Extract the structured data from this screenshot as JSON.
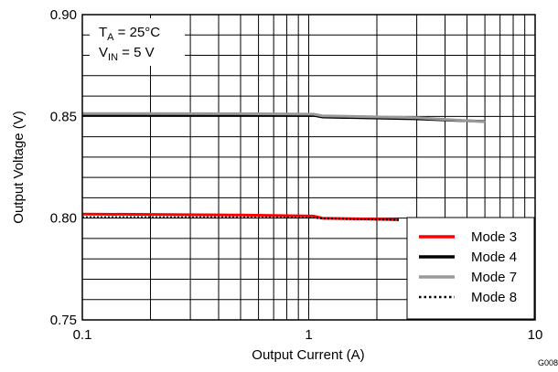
{
  "chart_data": {
    "type": "line",
    "xlabel": "Output Current (A)",
    "ylabel": "Output Voltage (V)",
    "xscale": "log",
    "xlim": [
      0.1,
      10
    ],
    "ylim": [
      0.75,
      0.9
    ],
    "x_tick_labels": [
      "0.1",
      "1",
      "10"
    ],
    "y_tick_labels": [
      "0.75",
      "0.80",
      "0.85",
      "0.90"
    ],
    "grid": true,
    "legend_position": "bottom-right",
    "conditions": {
      "temp_prefix": "T",
      "temp_sub": "A",
      "temp_value": " = 25°C",
      "vin_prefix": "V",
      "vin_sub": "IN",
      "vin_value": " = 5 V"
    },
    "figure_id": "G008",
    "series": [
      {
        "name": "Mode 3",
        "color": "#ff0000",
        "style": "solid",
        "x": [
          0.1,
          0.5,
          1.05,
          1.15,
          2.0,
          2.5
        ],
        "y": [
          0.802,
          0.8015,
          0.801,
          0.8,
          0.7995,
          0.7992
        ]
      },
      {
        "name": "Mode 4",
        "color": "#000000",
        "style": "solid",
        "x": [
          0.1,
          0.5,
          1.05,
          1.15,
          3.0,
          6.0
        ],
        "y": [
          0.8508,
          0.8507,
          0.8505,
          0.8497,
          0.8488,
          0.8475
        ]
      },
      {
        "name": "Mode 7",
        "color": "#999999",
        "style": "solid",
        "x": [
          0.1,
          0.5,
          1.05,
          1.15,
          3.0,
          6.0
        ],
        "y": [
          0.8514,
          0.8513,
          0.8511,
          0.8503,
          0.8494,
          0.8473
        ]
      },
      {
        "name": "Mode 8",
        "color": "#000000",
        "style": "dotted",
        "x": [
          0.1,
          0.5,
          1.05,
          1.15,
          2.0,
          2.5
        ],
        "y": [
          0.8005,
          0.8004,
          0.8003,
          0.7998,
          0.7993,
          0.7991
        ]
      }
    ]
  }
}
